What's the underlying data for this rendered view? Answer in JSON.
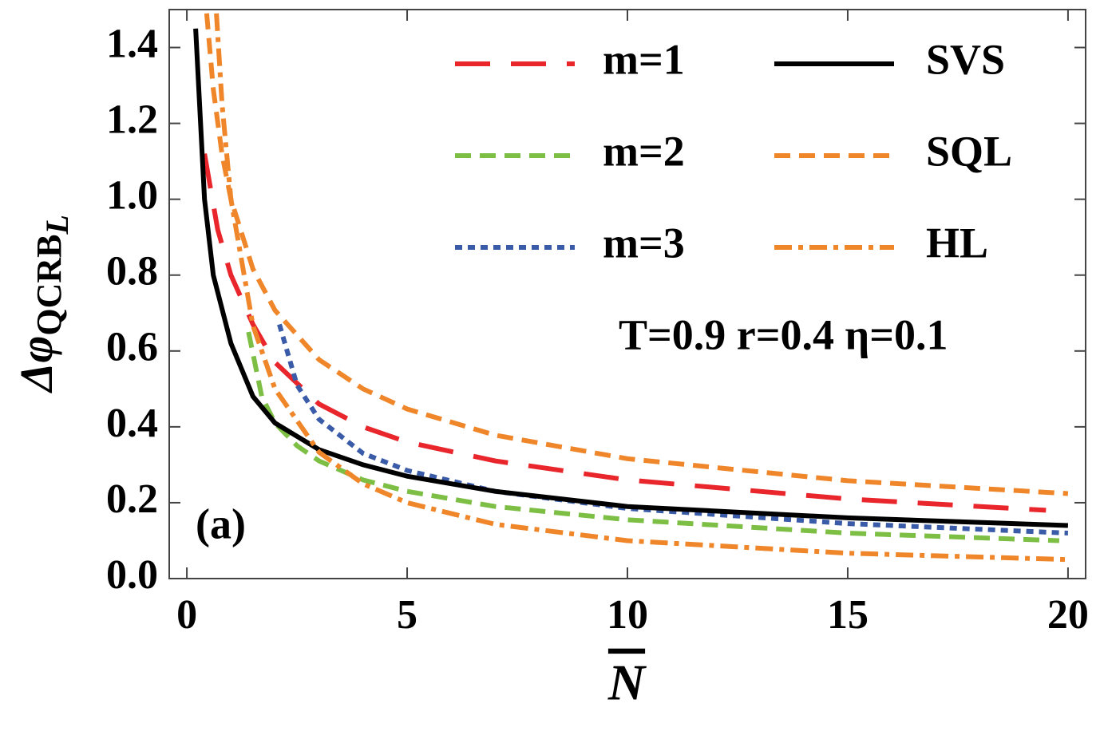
{
  "chart_data": {
    "type": "line",
    "xlabel": "N",
    "ylabel": {
      "main": "Δφ",
      "sub": "QCRB",
      "subsub": "L"
    },
    "annotation": "T=0.9 r=0.4 η=0.1",
    "panel_label": "(a)",
    "xlim": [
      -0.4,
      20.4
    ],
    "xticks": [
      0,
      5,
      10,
      15,
      20
    ],
    "ylim": [
      0,
      1.5
    ],
    "yticks": [
      {
        "value": 0,
        "label": "0.0"
      },
      0.2,
      0.4,
      0.6,
      0.8,
      {
        "value": 1,
        "label": "1.0"
      },
      1.2,
      1.4
    ],
    "series": [
      {
        "name": "m=1",
        "color": "#e8262b",
        "dash": "long-dash",
        "x": [
          0.4,
          0.7,
          1,
          1.5,
          2,
          3,
          4,
          5,
          7,
          10,
          15,
          19.5
        ],
        "values": [
          1.12,
          0.92,
          0.8,
          0.67,
          0.57,
          0.46,
          0.4,
          0.36,
          0.31,
          0.26,
          0.21,
          0.18
        ]
      },
      {
        "name": "m=2",
        "color": "#7dbf45",
        "dash": "dash",
        "x": [
          1.4,
          1.7,
          2,
          2.5,
          3,
          4,
          5,
          7,
          10,
          15,
          19.8
        ],
        "values": [
          0.65,
          0.48,
          0.41,
          0.35,
          0.31,
          0.26,
          0.23,
          0.19,
          0.155,
          0.12,
          0.1
        ]
      },
      {
        "name": "m=3",
        "color": "#3a5ba8",
        "dash": "dot",
        "x": [
          2.1,
          2.5,
          3,
          4,
          5,
          7,
          10,
          15,
          20
        ],
        "values": [
          0.67,
          0.51,
          0.42,
          0.33,
          0.285,
          0.23,
          0.185,
          0.145,
          0.12
        ]
      },
      {
        "name": "SVS",
        "color": "#000000",
        "dash": "solid",
        "x": [
          0.2,
          0.4,
          0.6,
          1,
          1.5,
          2,
          3,
          4,
          5,
          7,
          10,
          15,
          20
        ],
        "values": [
          1.45,
          1.0,
          0.8,
          0.62,
          0.48,
          0.41,
          0.34,
          0.3,
          0.27,
          0.23,
          0.19,
          0.16,
          0.14
        ]
      },
      {
        "name": "SQL",
        "color": "#f0862a",
        "dash": "dash",
        "x": [
          0.45,
          0.6,
          0.8,
          1,
          1.5,
          2,
          3,
          4,
          5,
          7,
          10,
          15,
          20
        ],
        "values": [
          1.49,
          1.29,
          1.118,
          1,
          0.816,
          0.707,
          0.577,
          0.5,
          0.447,
          0.378,
          0.316,
          0.258,
          0.224
        ]
      },
      {
        "name": "HL",
        "color": "#f0862a",
        "dash": "dash-dot",
        "x": [
          0.67,
          0.8,
          1,
          1.5,
          2,
          3,
          4,
          5,
          7,
          10,
          15,
          20
        ],
        "values": [
          1.49,
          1.25,
          1.0,
          0.667,
          0.5,
          0.333,
          0.25,
          0.2,
          0.143,
          0.1,
          0.067,
          0.05
        ]
      }
    ]
  }
}
